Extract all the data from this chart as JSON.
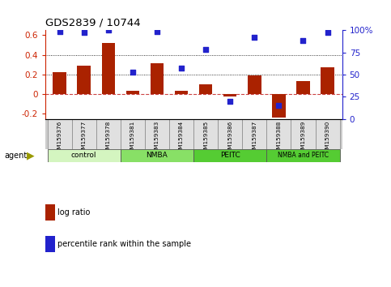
{
  "title": "GDS2839 / 10744",
  "samples": [
    "GSM159376",
    "GSM159377",
    "GSM159378",
    "GSM159381",
    "GSM159383",
    "GSM159384",
    "GSM159385",
    "GSM159386",
    "GSM159387",
    "GSM159388",
    "GSM159389",
    "GSM159390"
  ],
  "log_ratio": [
    0.22,
    0.29,
    0.52,
    0.03,
    0.31,
    0.03,
    0.1,
    -0.02,
    0.19,
    -0.24,
    0.13,
    0.27
  ],
  "percentile_rank": [
    98,
    97,
    100,
    53,
    98,
    57,
    78,
    20,
    92,
    15,
    88,
    97
  ],
  "groups": [
    {
      "label": "control",
      "start": 0,
      "end": 3,
      "color": "#d4f5c0"
    },
    {
      "label": "NMBA",
      "start": 3,
      "end": 6,
      "color": "#88e066"
    },
    {
      "label": "PEITC",
      "start": 6,
      "end": 9,
      "color": "#55cc33"
    },
    {
      "label": "NMBA and PEITC",
      "start": 9,
      "end": 12,
      "color": "#55cc33"
    }
  ],
  "bar_color": "#aa2200",
  "dot_color": "#2222cc",
  "ylim_left": [
    -0.25,
    0.65
  ],
  "ylim_right": [
    0,
    100
  ],
  "yticks_left": [
    -0.2,
    0.0,
    0.2,
    0.4,
    0.6
  ],
  "yticks_right": [
    0,
    25,
    50,
    75,
    100
  ],
  "ytick_labels_left": [
    "-0.2",
    "0",
    "0.2",
    "0.4",
    "0.6"
  ],
  "ytick_labels_right": [
    "0",
    "25",
    "50",
    "75",
    "100%"
  ],
  "hlines": [
    0.2,
    0.4
  ],
  "legend_items": [
    {
      "label": "log ratio",
      "color": "#aa2200"
    },
    {
      "label": "percentile rank within the sample",
      "color": "#2222cc"
    }
  ],
  "background_color": "#ffffff"
}
